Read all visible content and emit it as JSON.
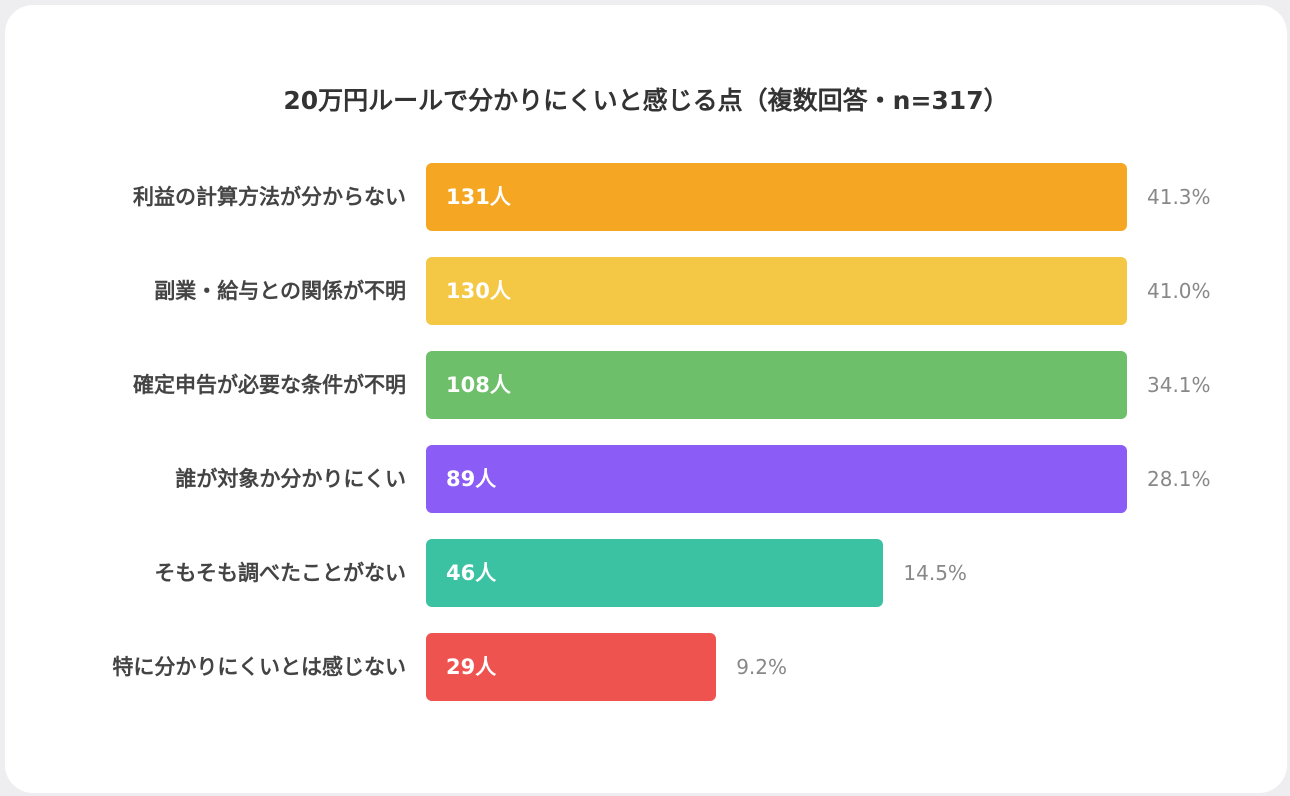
{
  "chart_data": {
    "type": "bar",
    "orientation": "horizontal",
    "title": "20万円ルールで分かりにくいと感じる点（複数回答・n=317）",
    "categories": [
      "利益の計算方法が分からない",
      "副業・給与との関係が不明",
      "確定申告が必要な条件が不明",
      "誰が対象か分かりにくい",
      "そもそも調べたことがない",
      "特に分かりにくいとは感じない"
    ],
    "values": [
      131,
      130,
      108,
      89,
      46,
      29
    ],
    "value_labels": [
      "131人",
      "130人",
      "108人",
      "89人",
      "46人",
      "29人"
    ],
    "percents": [
      41.3,
      41.0,
      34.1,
      28.1,
      14.5,
      9.2
    ],
    "percent_labels": [
      "41.3%",
      "41.0%",
      "34.1%",
      "28.1%",
      "14.5%",
      "9.2%"
    ],
    "colors": [
      "#F5A623",
      "#F4C744",
      "#6DBF69",
      "#8B5CF6",
      "#3BC2A2",
      "#EF5350"
    ],
    "grid": false,
    "legend": "none"
  }
}
